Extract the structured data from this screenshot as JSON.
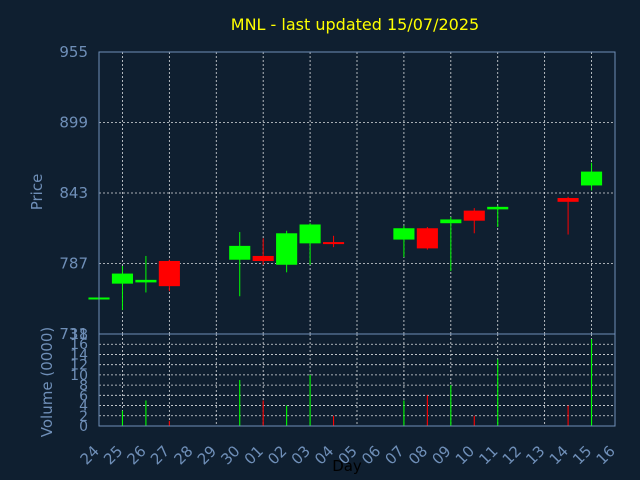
{
  "chart_data": {
    "type": "candlestick",
    "title": "MNL - last updated 15/07/2025",
    "xlabel": "Day",
    "price_ylabel": "Price",
    "volume_ylabel": "Volume (0000)",
    "price_ylim": [
      731,
      955
    ],
    "price_yticks": [
      955,
      899,
      843,
      787,
      731
    ],
    "volume_ylim": [
      0,
      18
    ],
    "volume_yticks": [
      18,
      16,
      14,
      12,
      10,
      8,
      6,
      4,
      2,
      0
    ],
    "x_labels": [
      "24",
      "25",
      "26",
      "27",
      "28",
      "29",
      "30",
      "01",
      "02",
      "03",
      "04",
      "05",
      "06",
      "07",
      "08",
      "09",
      "10",
      "11",
      "12",
      "13",
      "14",
      "15",
      "16"
    ],
    "candles": [
      {
        "x": 0,
        "open": 759,
        "high": 760,
        "low": 758,
        "close": 760,
        "volume": 0
      },
      {
        "x": 1,
        "open": 771,
        "high": 785,
        "low": 750,
        "close": 779,
        "volume": 3
      },
      {
        "x": 2,
        "open": 772,
        "high": 793,
        "low": 764,
        "close": 774,
        "volume": 5
      },
      {
        "x": 3,
        "open": 789,
        "high": 790,
        "low": 765,
        "close": 769,
        "volume": 1
      },
      {
        "x": 6,
        "open": 790,
        "high": 812,
        "low": 761,
        "close": 801,
        "volume": 9
      },
      {
        "x": 7,
        "open": 793,
        "high": 807,
        "low": 786,
        "close": 789,
        "volume": 5
      },
      {
        "x": 8,
        "open": 786,
        "high": 813,
        "low": 780,
        "close": 811,
        "volume": 4
      },
      {
        "x": 9,
        "open": 803,
        "high": 819,
        "low": 786,
        "close": 818,
        "volume": 10
      },
      {
        "x": 10,
        "open": 804,
        "high": 809,
        "low": 800,
        "close": 803,
        "volume": 2
      },
      {
        "x": 13,
        "open": 806,
        "high": 817,
        "low": 792,
        "close": 815,
        "volume": 5
      },
      {
        "x": 14,
        "open": 815,
        "high": 816,
        "low": 798,
        "close": 799,
        "volume": 6
      },
      {
        "x": 15,
        "open": 819,
        "high": 824,
        "low": 781,
        "close": 822,
        "volume": 8
      },
      {
        "x": 16,
        "open": 829,
        "high": 831,
        "low": 811,
        "close": 821,
        "volume": 2
      },
      {
        "x": 17,
        "open": 830,
        "high": 833,
        "low": 816,
        "close": 832,
        "volume": 13
      },
      {
        "x": 20,
        "open": 839,
        "high": 840,
        "low": 810,
        "close": 836,
        "volume": 4
      },
      {
        "x": 21,
        "open": 849,
        "high": 867,
        "low": 845,
        "close": 860,
        "volume": 17
      }
    ],
    "colors": {
      "up": "#00ff00",
      "down": "#ff0000",
      "background": "#0f1f30",
      "axis": "#6f8fb8",
      "grid": "#ffffff",
      "title": "#ffff00"
    },
    "grid": true
  }
}
